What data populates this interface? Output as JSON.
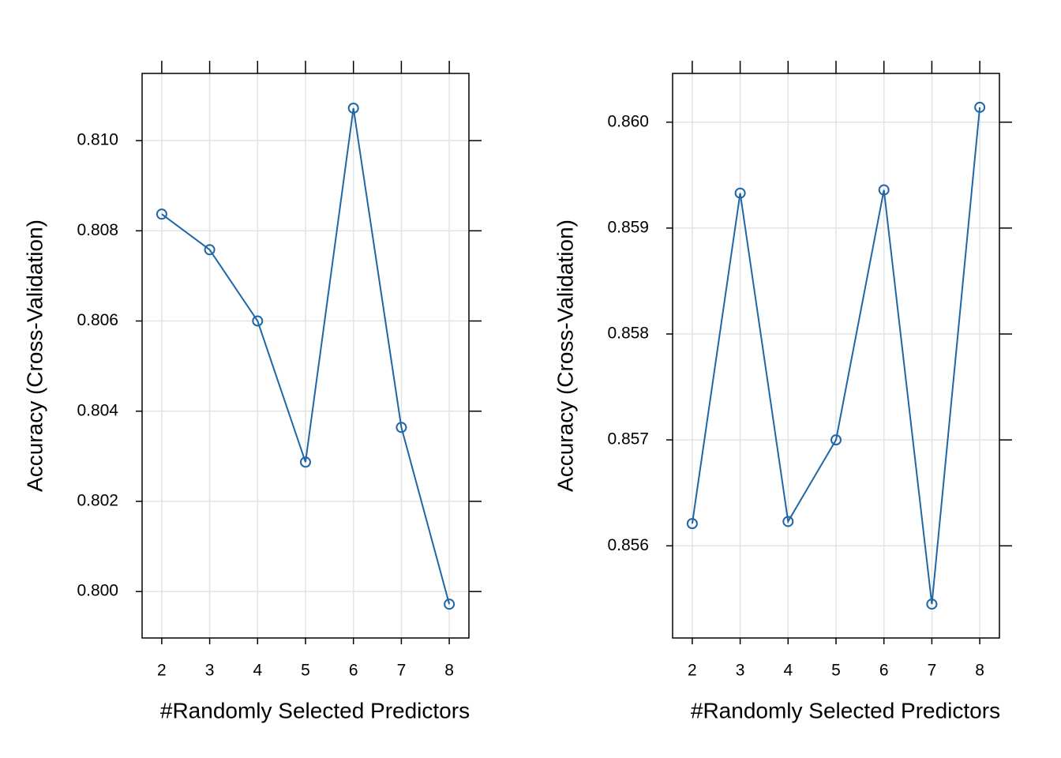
{
  "chart_data": [
    {
      "type": "line",
      "x_label": "#Randomly Selected Predictors",
      "y_label": "Accuracy (Cross-Validation)",
      "x": [
        2,
        3,
        4,
        5,
        6,
        7,
        8
      ],
      "values": [
        0.80837,
        0.80758,
        0.806,
        0.80287,
        0.81072,
        0.80364,
        0.79972
      ],
      "color": "#1f66a6",
      "grid": true,
      "xlim": [
        1.59,
        8.41
      ],
      "xticks": [
        2,
        3,
        4,
        5,
        6,
        7,
        8
      ],
      "ylim": [
        0.79897,
        0.81149
      ],
      "yticks": [
        {
          "value": 0.8,
          "label": "0.800"
        },
        0.802,
        0.804,
        0.806,
        0.808,
        {
          "value": 0.81,
          "label": "0.810"
        }
      ]
    },
    {
      "type": "line",
      "x_label": "#Randomly Selected Predictors",
      "y_label": "Accuracy (Cross-Validation)",
      "x": [
        2,
        3,
        4,
        5,
        6,
        7,
        8
      ],
      "values": [
        0.85621,
        0.85933,
        0.85623,
        0.857,
        0.85936,
        0.85545,
        0.86014
      ],
      "color": "#1f66a6",
      "grid": true,
      "xlim": [
        1.59,
        8.41
      ],
      "xticks": [
        2,
        3,
        4,
        5,
        6,
        7,
        8
      ],
      "ylim": [
        0.85513,
        0.86046
      ],
      "yticks": [
        0.856,
        0.857,
        0.858,
        0.859,
        {
          "value": 0.86,
          "label": "0.860"
        }
      ]
    }
  ]
}
